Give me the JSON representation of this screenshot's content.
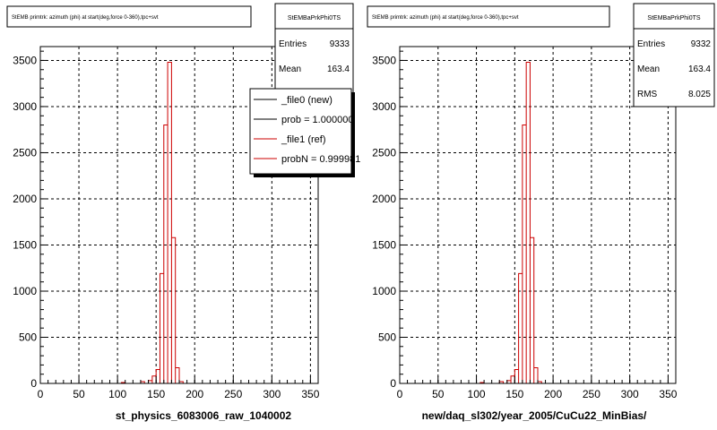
{
  "chart_data": [
    {
      "type": "histogram",
      "title": "StEMB primtrk: azimuth (phi) at start(deg,force 0-360),tpc+svt",
      "xlabel": "st_physics_6083006_raw_1040002",
      "ylabel": "",
      "xlim": [
        0,
        360
      ],
      "ylim": [
        0,
        3650
      ],
      "x_ticks": [
        0,
        50,
        100,
        150,
        200,
        250,
        300,
        350
      ],
      "y_ticks": [
        0,
        500,
        1000,
        1500,
        2000,
        2500,
        3000,
        3500
      ],
      "grid": true,
      "stats": {
        "name": "StEMBaPrkPhi0TS",
        "rows": [
          {
            "label": "Entries",
            "value": "9333"
          },
          {
            "label": "Mean",
            "value": "163.4"
          }
        ]
      },
      "legend": {
        "placement": "right",
        "entries": [
          {
            "label": "_file0 (new)",
            "color": "#000000"
          },
          {
            "label": "prob = 1.000000",
            "color": "#000000"
          },
          {
            "label": "_file1 (ref)",
            "color": "#cc0000"
          },
          {
            "label": "probN = 0.999981",
            "color": "#cc0000"
          }
        ]
      },
      "series": [
        {
          "color": "#cc0000",
          "bin_width": 5,
          "bins": [
            {
              "x": 105,
              "y": 10
            },
            {
              "x": 130,
              "y": 20
            },
            {
              "x": 140,
              "y": 30
            },
            {
              "x": 145,
              "y": 80
            },
            {
              "x": 150,
              "y": 150
            },
            {
              "x": 155,
              "y": 1190
            },
            {
              "x": 160,
              "y": 2800
            },
            {
              "x": 165,
              "y": 3480
            },
            {
              "x": 170,
              "y": 1580
            },
            {
              "x": 175,
              "y": 170
            },
            {
              "x": 180,
              "y": 20
            }
          ]
        }
      ]
    },
    {
      "type": "histogram",
      "title": "StEMB primtrk: azimuth (phi) at start(deg,force 0-360),tpc+svt",
      "xlabel": "new/daq_sl302/year_2005/CuCu22_MinBias/",
      "ylabel": "",
      "xlim": [
        0,
        360
      ],
      "ylim": [
        0,
        3650
      ],
      "x_ticks": [
        0,
        50,
        100,
        150,
        200,
        250,
        300,
        350
      ],
      "y_ticks": [
        0,
        500,
        1000,
        1500,
        2000,
        2500,
        3000,
        3500
      ],
      "grid": true,
      "stats": {
        "name": "StEMBaPrkPhi0TS",
        "rows": [
          {
            "label": "Entries",
            "value": "9332"
          },
          {
            "label": "Mean",
            "value": "163.4"
          },
          {
            "label": "RMS",
            "value": "8.025"
          }
        ]
      },
      "series": [
        {
          "color": "#cc0000",
          "bin_width": 5,
          "bins": [
            {
              "x": 105,
              "y": 10
            },
            {
              "x": 130,
              "y": 20
            },
            {
              "x": 140,
              "y": 30
            },
            {
              "x": 145,
              "y": 80
            },
            {
              "x": 150,
              "y": 150
            },
            {
              "x": 155,
              "y": 1190
            },
            {
              "x": 160,
              "y": 2800
            },
            {
              "x": 165,
              "y": 3480
            },
            {
              "x": 170,
              "y": 1580
            },
            {
              "x": 175,
              "y": 170
            },
            {
              "x": 180,
              "y": 20
            }
          ]
        }
      ]
    }
  ]
}
